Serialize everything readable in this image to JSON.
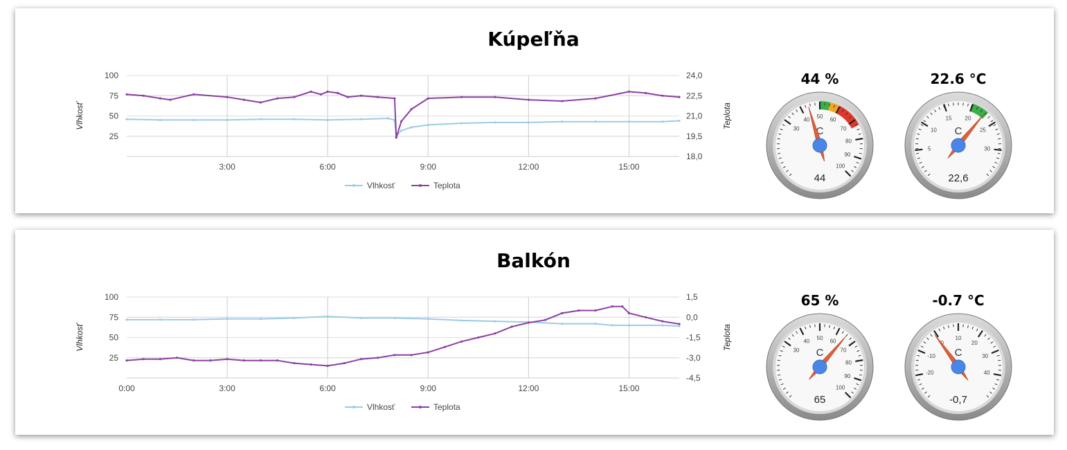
{
  "panels": [
    {
      "title": "Kúpeľňa",
      "gauges": [
        {
          "title": "44 %",
          "unit": "C",
          "value": 44,
          "display": "44",
          "min": 0,
          "max": 100,
          "majorTicks": [
            30,
            40,
            50,
            60,
            70,
            80,
            90,
            100
          ],
          "bands": [
            {
              "from": 50,
              "to": 55,
              "color": "#3bb04a"
            },
            {
              "from": 55,
              "to": 60,
              "color": "#f2a623"
            },
            {
              "from": 60,
              "to": 73,
              "color": "#e0392b"
            }
          ]
        },
        {
          "title": "22.6 °C",
          "unit": "C",
          "value": 22.6,
          "display": "22,6",
          "min": 0,
          "max": 35,
          "majorTicks": [
            5,
            10,
            15,
            20,
            25,
            30
          ],
          "bands": [
            {
              "from": 20,
              "to": 23,
              "color": "#3bb04a"
            }
          ]
        }
      ]
    },
    {
      "title": "Balkón",
      "gauges": [
        {
          "title": "65 %",
          "unit": "C",
          "value": 65,
          "display": "65",
          "min": 0,
          "max": 100,
          "majorTicks": [
            30,
            40,
            50,
            60,
            70,
            80,
            90,
            100
          ],
          "bands": []
        },
        {
          "title": "-0.7 °C",
          "unit": "C",
          "value": -0.7,
          "display": "-0,7",
          "min": -30,
          "max": 50,
          "majorTicks": [
            -20,
            -10,
            0,
            10,
            20,
            30,
            40
          ],
          "bands": []
        }
      ]
    }
  ],
  "chart_data": [
    {
      "type": "line",
      "title": "",
      "ylabel": "Vlhkosť",
      "y2label": "Teplota",
      "xlim": [
        0,
        16.5
      ],
      "x_ticks": [
        "3:00",
        "6:00",
        "9:00",
        "12:00",
        "15:00"
      ],
      "y_ticks": [
        "100",
        "75",
        "50",
        "25"
      ],
      "y2_ticks": [
        "24,0",
        "22,5",
        "21,0",
        "19,5",
        "18,0"
      ],
      "ylim": [
        0,
        100
      ],
      "y2lim": [
        18.0,
        24.0
      ],
      "series": [
        {
          "name": "Vlhkosť",
          "axis": "left",
          "color": "#9ccbe6",
          "x": [
            0,
            1,
            2,
            3,
            4,
            5,
            6,
            7,
            7.8,
            8.0,
            8.05,
            8.2,
            8.5,
            9,
            10,
            11,
            12,
            13,
            14,
            15,
            16,
            16.5
          ],
          "y": [
            46,
            45,
            45,
            45,
            46,
            46,
            45,
            46,
            47,
            45,
            25,
            32,
            36,
            39,
            41,
            42,
            42,
            43,
            43,
            43,
            43,
            44
          ]
        },
        {
          "name": "Teplota",
          "axis": "right",
          "color": "#8b3fa2",
          "x": [
            0,
            0.5,
            1,
            1.3,
            2,
            3,
            3.5,
            4,
            4.5,
            5,
            5.5,
            5.8,
            6,
            6.3,
            6.6,
            7,
            7.5,
            8.0,
            8.05,
            8.2,
            8.5,
            9,
            10,
            11,
            12,
            13,
            14,
            15,
            15.5,
            16,
            16.5
          ],
          "y": [
            22.6,
            22.5,
            22.3,
            22.2,
            22.6,
            22.4,
            22.2,
            22.0,
            22.3,
            22.4,
            22.8,
            22.6,
            22.8,
            22.7,
            22.4,
            22.5,
            22.4,
            22.3,
            19.4,
            20.6,
            21.5,
            22.3,
            22.4,
            22.4,
            22.2,
            22.1,
            22.3,
            22.8,
            22.7,
            22.5,
            22.4
          ]
        }
      ]
    },
    {
      "type": "line",
      "title": "",
      "ylabel": "Vlhkosť",
      "y2label": "Teplota",
      "xlim": [
        0,
        16.5
      ],
      "x_ticks": [
        "0:00",
        "3:00",
        "6:00",
        "9:00",
        "12:00",
        "15:00"
      ],
      "y_ticks": [
        "100",
        "75",
        "50",
        "25"
      ],
      "y2_ticks": [
        "1,5",
        "0,0",
        "-1,5",
        "-3,0",
        "-4,5"
      ],
      "ylim": [
        0,
        100
      ],
      "y2lim": [
        -4.5,
        1.5
      ],
      "series": [
        {
          "name": "Vlhkosť",
          "axis": "left",
          "color": "#9ccbe6",
          "x": [
            0,
            1,
            2,
            3,
            4,
            5,
            6,
            7,
            8,
            9,
            10,
            11,
            12,
            13,
            14,
            14.5,
            15,
            16,
            16.5
          ],
          "y": [
            72,
            72,
            72,
            73,
            73,
            74,
            76,
            74,
            74,
            73,
            71,
            70,
            69,
            67,
            67,
            65,
            65,
            65,
            64
          ]
        },
        {
          "name": "Teplota",
          "axis": "right",
          "color": "#8b3fa2",
          "x": [
            0,
            0.5,
            1,
            1.5,
            2,
            2.5,
            3,
            3.5,
            4,
            4.5,
            5,
            5.5,
            6,
            6.5,
            7,
            7.5,
            8,
            8.5,
            9,
            9.5,
            10,
            10.5,
            11,
            11.5,
            12,
            12.5,
            13,
            13.5,
            14,
            14.5,
            14.8,
            15,
            15.5,
            16,
            16.5
          ],
          "y": [
            -3.2,
            -3.1,
            -3.1,
            -3.0,
            -3.2,
            -3.2,
            -3.1,
            -3.2,
            -3.2,
            -3.2,
            -3.4,
            -3.5,
            -3.6,
            -3.4,
            -3.1,
            -3.0,
            -2.8,
            -2.8,
            -2.6,
            -2.2,
            -1.8,
            -1.5,
            -1.2,
            -0.7,
            -0.4,
            -0.2,
            0.3,
            0.5,
            0.5,
            0.8,
            0.8,
            0.3,
            0.0,
            -0.3,
            -0.5
          ]
        }
      ]
    }
  ]
}
